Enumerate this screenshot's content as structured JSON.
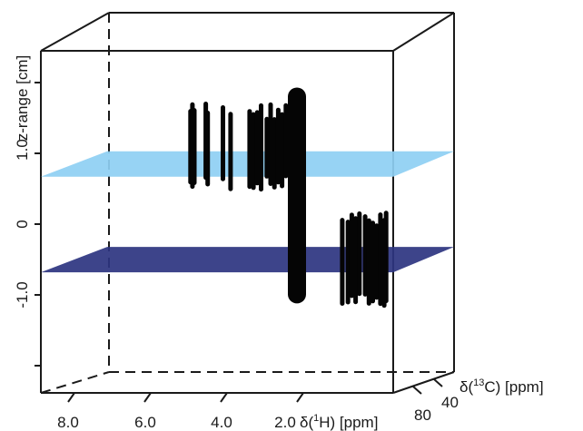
{
  "chart_data": {
    "type": "3d-nmr-stack",
    "title": "",
    "z_axis": {
      "label": "z-range [cm]",
      "ticks": [
        "1.0",
        "0",
        "-1.0"
      ],
      "label_prefix": "1.0"
    },
    "x_axis": {
      "label_prefix": "δ(",
      "label_sup": "1",
      "label_suffix": "H) [ppm]",
      "ticks": [
        "8.0",
        "6.0",
        "4.0",
        "2.0"
      ],
      "range_ppm": [
        9.0,
        0.0
      ]
    },
    "y_axis": {
      "label_prefix": "δ(",
      "label_sup": "13",
      "label_suffix": "C) [ppm]",
      "ticks": [
        "80",
        "40"
      ]
    },
    "planes": [
      {
        "name": "upper-plane",
        "z": 0.9,
        "color": "#8ecff3"
      },
      {
        "name": "lower-plane",
        "z": -0.45,
        "color": "#2c3480"
      }
    ],
    "peak_groups": [
      {
        "name": "peaks-upper-slice",
        "z_range": [
          0.45,
          1.75
        ],
        "ppm": [
          5.6,
          5.55,
          5.5,
          5.2,
          5.15,
          4.75,
          4.55,
          4.05,
          3.95,
          3.85,
          3.75,
          3.6,
          3.5,
          3.4,
          3.3,
          3.2,
          3.1
        ]
      },
      {
        "name": "peaks-lower-slice",
        "z_range": [
          -1.2,
          0.2
        ],
        "ppm": [
          2.05,
          1.9,
          1.8,
          1.7,
          1.6,
          1.45,
          1.35,
          1.25,
          1.15,
          1.05,
          0.95,
          0.9
        ]
      },
      {
        "name": "peaks-tall-column",
        "z_range": [
          -1.25,
          2.1
        ],
        "ppm": [
          3.0
        ]
      }
    ],
    "grid": false,
    "legend": "none"
  }
}
